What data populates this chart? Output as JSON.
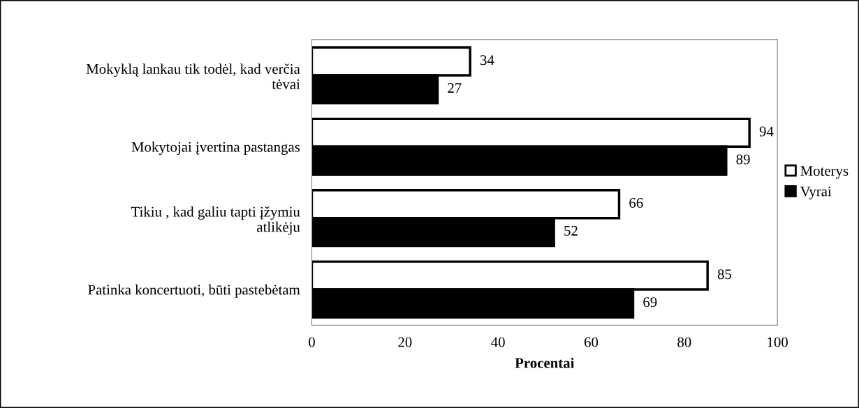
{
  "chart_data": {
    "type": "bar",
    "orientation": "horizontal",
    "xlabel": "Procentai",
    "categories": [
      "Mokyklą lankau tik todėl, kad verčia tėvai",
      "Mokytojai įvertina pastangas",
      "Tikiu , kad galiu tapti įžymiu atlikėju",
      "Patinka koncertuoti, būti pastebėtam"
    ],
    "series": [
      {
        "name": "Moterys",
        "color": "#ffffff",
        "values": [
          34,
          94,
          66,
          85
        ]
      },
      {
        "name": "Vyrai",
        "color": "#000000",
        "values": [
          27,
          89,
          52,
          69
        ]
      }
    ],
    "xlim": [
      0,
      100
    ],
    "xticks": [
      0,
      20,
      40,
      60,
      80,
      100
    ],
    "data_labels": true,
    "grid": false,
    "legend": "right"
  }
}
